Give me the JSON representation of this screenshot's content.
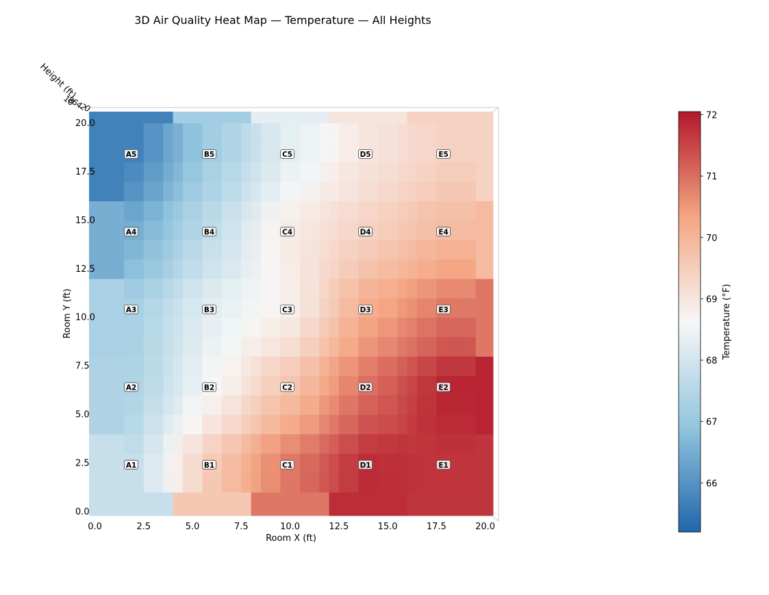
{
  "chart_data": {
    "type": "heatmap",
    "title": "3D Air Quality Heat Map — Temperature — All Heights",
    "xlabel": "Room X (ft)",
    "ylabel": "Room Y (ft)",
    "zlabel": "Height (ft)",
    "colorbar_label": "Temperature (°F)",
    "colormap": "RdBu_r",
    "color_low": "#2166ac",
    "color_mid": "#f7f7f7",
    "color_high": "#b2182b",
    "xlim": [
      -0.3,
      20.4
    ],
    "ylim": [
      -0.2,
      20.6
    ],
    "clim": [
      65.2,
      72.05
    ],
    "x_ticks": [
      "0.0",
      "2.5",
      "5.0",
      "7.5",
      "10.0",
      "12.5",
      "15.0",
      "17.5",
      "20.0"
    ],
    "y_ticks": [
      "0.0",
      "2.5",
      "5.0",
      "7.5",
      "10.0",
      "12.5",
      "15.0",
      "17.5",
      "20.0"
    ],
    "colorbar_ticks": [
      "66",
      "67",
      "68",
      "69",
      "70",
      "71",
      "72"
    ],
    "sensors": [
      {
        "label": "A1",
        "x": 2,
        "y": 2.4,
        "value": 67.8
      },
      {
        "label": "B1",
        "x": 6,
        "y": 2.4,
        "value": 69.6
      },
      {
        "label": "C1",
        "x": 10,
        "y": 2.4,
        "value": 70.9
      },
      {
        "label": "D1",
        "x": 14,
        "y": 2.4,
        "value": 71.8
      },
      {
        "label": "E1",
        "x": 18,
        "y": 2.4,
        "value": 71.7
      },
      {
        "label": "A2",
        "x": 2,
        "y": 6.4,
        "value": 67.4
      },
      {
        "label": "B2",
        "x": 6,
        "y": 6.4,
        "value": 68.6
      },
      {
        "label": "C2",
        "x": 10,
        "y": 6.4,
        "value": 69.7
      },
      {
        "label": "D2",
        "x": 14,
        "y": 6.4,
        "value": 71.0
      },
      {
        "label": "E2",
        "x": 18,
        "y": 6.4,
        "value": 71.9
      },
      {
        "label": "A3",
        "x": 2,
        "y": 10.4,
        "value": 67.3
      },
      {
        "label": "B3",
        "x": 6,
        "y": 10.4,
        "value": 68.3
      },
      {
        "label": "C3",
        "x": 10,
        "y": 10.4,
        "value": 68.8
      },
      {
        "label": "D3",
        "x": 14,
        "y": 10.4,
        "value": 70.2
      },
      {
        "label": "E3",
        "x": 18,
        "y": 10.4,
        "value": 70.9
      },
      {
        "label": "A4",
        "x": 2,
        "y": 14.4,
        "value": 66.5
      },
      {
        "label": "B4",
        "x": 6,
        "y": 14.4,
        "value": 67.7
      },
      {
        "label": "C4",
        "x": 10,
        "y": 14.4,
        "value": 68.9
      },
      {
        "label": "D4",
        "x": 14,
        "y": 14.4,
        "value": 69.4
      },
      {
        "label": "E4",
        "x": 18,
        "y": 14.4,
        "value": 69.9
      },
      {
        "label": "A5",
        "x": 2,
        "y": 18.4,
        "value": 65.7
      },
      {
        "label": "B5",
        "x": 6,
        "y": 18.4,
        "value": 67.2
      },
      {
        "label": "C5",
        "x": 10,
        "y": 18.4,
        "value": 68.3
      },
      {
        "label": "D5",
        "x": 14,
        "y": 18.4,
        "value": 69.0
      },
      {
        "label": "E5",
        "x": 18,
        "y": 18.4,
        "value": 69.4
      }
    ]
  }
}
